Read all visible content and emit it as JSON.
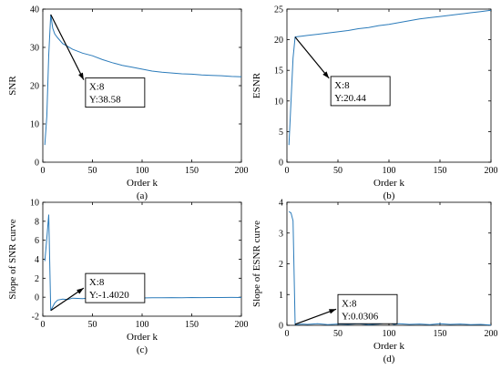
{
  "chart_data": [
    {
      "type": "line",
      "caption": "(a)",
      "xlabel": "Order k",
      "ylabel": "SNR",
      "xlim": [
        0,
        200
      ],
      "ylim": [
        0,
        40
      ],
      "xticks": [
        0,
        50,
        100,
        150,
        200
      ],
      "yticks": [
        0,
        10,
        20,
        30,
        40
      ],
      "series_color": "#2b7bba",
      "series": [
        {
          "x": [
            2,
            4,
            6,
            8,
            10,
            12,
            15,
            20,
            30,
            40,
            50,
            60,
            70,
            80,
            90,
            100,
            110,
            120,
            130,
            140,
            150,
            160,
            170,
            180,
            190,
            200
          ],
          "y": [
            4.5,
            12,
            28,
            38.58,
            35,
            33.5,
            32.5,
            31,
            29.5,
            28.5,
            27.8,
            26.8,
            26,
            25.3,
            24.8,
            24.3,
            23.8,
            23.5,
            23.3,
            23.1,
            23,
            22.8,
            22.7,
            22.6,
            22.4,
            22.3
          ]
        }
      ],
      "annotation": {
        "x": 8,
        "y": 38.58,
        "text_x": "X:8",
        "text_y": "Y:38.58",
        "box_at": [
          43,
          22
        ]
      }
    },
    {
      "type": "line",
      "caption": "(b)",
      "xlabel": "Order k",
      "ylabel": "ESNR",
      "xlim": [
        0,
        200
      ],
      "ylim": [
        0,
        25
      ],
      "xticks": [
        0,
        50,
        100,
        150,
        200
      ],
      "yticks": [
        0,
        5,
        10,
        15,
        20,
        25
      ],
      "series_color": "#2b7bba",
      "series": [
        {
          "x": [
            2,
            4,
            6,
            8,
            10,
            15,
            20,
            30,
            40,
            50,
            60,
            70,
            80,
            90,
            100,
            110,
            120,
            130,
            140,
            150,
            160,
            170,
            180,
            190,
            200
          ],
          "y": [
            2.8,
            10,
            17,
            20.44,
            20.5,
            20.6,
            20.7,
            20.9,
            21.1,
            21.3,
            21.5,
            21.8,
            22,
            22.3,
            22.5,
            22.8,
            23.1,
            23.4,
            23.6,
            23.8,
            24,
            24.2,
            24.4,
            24.6,
            24.8
          ]
        }
      ],
      "annotation": {
        "x": 8,
        "y": 20.44,
        "text_x": "X:8",
        "text_y": "Y:20.44",
        "box_at": [
          43,
          14
        ]
      }
    },
    {
      "type": "line",
      "caption": "(c)",
      "xlabel": "Order k",
      "ylabel": "Slope of SNR curve",
      "xlim": [
        0,
        200
      ],
      "ylim": [
        -2,
        10
      ],
      "xticks": [
        0,
        50,
        100,
        150,
        200
      ],
      "yticks": [
        -2,
        0,
        2,
        4,
        6,
        8,
        10
      ],
      "series_color": "#2b7bba",
      "series": [
        {
          "x": [
            2,
            4,
            6,
            8,
            10,
            12,
            15,
            20,
            25,
            30,
            40,
            50,
            60,
            70,
            80,
            90,
            100,
            110,
            120,
            130,
            140,
            150,
            160,
            170,
            180,
            190,
            200
          ],
          "y": [
            3.8,
            6.2,
            8.7,
            -1.402,
            -1.0,
            -0.6,
            -0.3,
            -0.2,
            -0.25,
            -0.1,
            -0.15,
            -0.05,
            -0.1,
            -0.05,
            -0.1,
            -0.05,
            -0.08,
            -0.05,
            -0.06,
            -0.04,
            -0.05,
            -0.03,
            -0.04,
            -0.03,
            -0.03,
            -0.02,
            -0.03
          ]
        }
      ],
      "annotation": {
        "x": 8,
        "y": -1.402,
        "text_x": "X:8",
        "text_y": "Y:-1.4020",
        "box_at": [
          43,
          2.5
        ]
      }
    },
    {
      "type": "line",
      "caption": "(d)",
      "xlabel": "Order k",
      "ylabel": "Slope of ESNR curve",
      "xlim": [
        0,
        200
      ],
      "ylim": [
        0,
        4
      ],
      "xticks": [
        0,
        50,
        100,
        150,
        200
      ],
      "yticks": [
        0,
        1,
        2,
        3,
        4
      ],
      "series_color": "#2b7bba",
      "series": [
        {
          "x": [
            2,
            4,
            6,
            8,
            10,
            15,
            20,
            30,
            40,
            50,
            60,
            70,
            80,
            90,
            100,
            105,
            110,
            120,
            130,
            140,
            150,
            160,
            170,
            180,
            190,
            200
          ],
          "y": [
            3.7,
            3.65,
            3.4,
            0.0306,
            0.02,
            0.04,
            0.03,
            0.05,
            0.02,
            0.04,
            0.03,
            0.05,
            0.02,
            0.04,
            0.08,
            0.03,
            0.05,
            0.03,
            0.04,
            0.02,
            0.05,
            0.03,
            0.04,
            0.02,
            0.03,
            0.01
          ]
        }
      ],
      "annotation": {
        "x": 8,
        "y": 0.0306,
        "text_x": "X:8",
        "text_y": "Y:0.0306",
        "box_at": [
          50,
          1.0
        ]
      }
    }
  ]
}
